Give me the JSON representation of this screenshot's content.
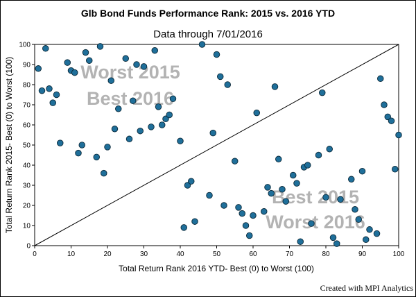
{
  "chart_data": {
    "type": "scatter",
    "title": "Glb Bond Funds Performance Rank: 2015 vs. 2016 YTD",
    "subtitle": "Data through 7/01/2016",
    "xlabel": "Total Return Rank 2016 YTD- Best (0) to Worst (100)",
    "ylabel": "Total Return Rank 2015- Best (0) to Worst (100)",
    "xlim": [
      0,
      100
    ],
    "ylim": [
      0,
      100
    ],
    "xticks": [
      0,
      10,
      20,
      30,
      40,
      50,
      60,
      70,
      80,
      90,
      100
    ],
    "yticks": [
      0,
      10,
      20,
      30,
      40,
      50,
      60,
      70,
      80,
      90,
      100
    ],
    "grid": false,
    "reference_line": {
      "from": [
        0,
        0
      ],
      "to": [
        100,
        100
      ]
    },
    "annotations": {
      "upper_left": [
        "Worst 2015",
        "Best 2016"
      ],
      "lower_right": [
        "Best 2015",
        "Worst 2016"
      ]
    },
    "marker_color": "#1f6f9a",
    "marker_edge": "#0a2838",
    "points": [
      [
        1,
        88
      ],
      [
        2,
        77
      ],
      [
        3,
        98
      ],
      [
        4,
        78
      ],
      [
        5,
        71
      ],
      [
        6,
        75
      ],
      [
        7,
        51
      ],
      [
        9,
        91
      ],
      [
        10,
        87
      ],
      [
        11,
        86
      ],
      [
        12,
        46
      ],
      [
        13,
        50
      ],
      [
        14,
        96
      ],
      [
        15,
        92
      ],
      [
        17,
        44
      ],
      [
        18,
        99
      ],
      [
        19,
        36
      ],
      [
        20,
        49
      ],
      [
        21,
        82
      ],
      [
        22,
        58
      ],
      [
        23,
        68
      ],
      [
        25,
        93
      ],
      [
        26,
        53
      ],
      [
        27,
        72
      ],
      [
        28,
        90
      ],
      [
        29,
        57
      ],
      [
        30,
        89
      ],
      [
        32,
        59
      ],
      [
        33,
        97
      ],
      [
        34,
        69
      ],
      [
        35,
        60
      ],
      [
        36,
        63
      ],
      [
        37,
        65
      ],
      [
        38,
        73
      ],
      [
        40,
        52
      ],
      [
        41,
        9
      ],
      [
        42,
        30
      ],
      [
        43,
        32
      ],
      [
        44,
        12
      ],
      [
        46,
        100
      ],
      [
        48,
        25
      ],
      [
        49,
        56
      ],
      [
        50,
        95
      ],
      [
        51,
        84
      ],
      [
        52,
        20
      ],
      [
        53,
        80
      ],
      [
        55,
        42
      ],
      [
        56,
        19
      ],
      [
        57,
        16
      ],
      [
        58,
        10
      ],
      [
        59,
        5
      ],
      [
        60,
        15
      ],
      [
        61,
        66
      ],
      [
        63,
        17
      ],
      [
        64,
        29
      ],
      [
        65,
        26
      ],
      [
        66,
        79
      ],
      [
        67,
        43
      ],
      [
        68,
        28
      ],
      [
        69,
        22
      ],
      [
        71,
        35
      ],
      [
        72,
        31
      ],
      [
        73,
        2
      ],
      [
        74,
        39
      ],
      [
        75,
        40
      ],
      [
        76,
        11
      ],
      [
        78,
        45
      ],
      [
        79,
        76
      ],
      [
        80,
        24
      ],
      [
        81,
        48
      ],
      [
        82,
        4
      ],
      [
        83,
        1
      ],
      [
        84,
        23
      ],
      [
        87,
        33
      ],
      [
        88,
        18
      ],
      [
        89,
        13
      ],
      [
        90,
        37
      ],
      [
        91,
        3
      ],
      [
        92,
        8
      ],
      [
        94,
        6
      ],
      [
        95,
        83
      ],
      [
        96,
        70
      ],
      [
        97,
        64
      ],
      [
        98,
        62
      ],
      [
        99,
        38
      ],
      [
        100,
        55
      ]
    ]
  },
  "footer": {
    "credit": "Created with MPI Analytics"
  }
}
